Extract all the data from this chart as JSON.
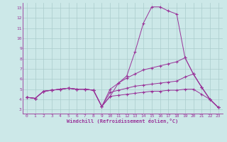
{
  "xlabel": "Windchill (Refroidissement éolien,°C)",
  "background_color": "#cce8e8",
  "grid_color": "#aacccc",
  "line_color": "#993399",
  "xlim_min": -0.5,
  "xlim_max": 23.5,
  "ylim_min": 2.6,
  "ylim_max": 13.5,
  "xticks": [
    0,
    1,
    2,
    3,
    4,
    5,
    6,
    7,
    8,
    9,
    10,
    11,
    12,
    13,
    14,
    15,
    16,
    17,
    18,
    19,
    20,
    21,
    22,
    23
  ],
  "yticks": [
    3,
    4,
    5,
    6,
    7,
    8,
    9,
    10,
    11,
    12,
    13
  ],
  "line1_x": [
    0,
    1,
    2,
    3,
    4,
    5,
    6,
    7,
    8,
    9,
    10,
    11,
    12,
    13,
    14,
    15,
    16,
    17,
    18,
    19,
    20,
    21,
    22,
    23
  ],
  "line1_y": [
    4.2,
    4.1,
    4.8,
    4.9,
    5.0,
    5.1,
    5.0,
    5.0,
    4.9,
    3.3,
    4.3,
    5.6,
    6.3,
    8.7,
    11.5,
    13.1,
    13.1,
    12.7,
    12.4,
    8.1,
    6.5,
    5.2,
    4.0,
    3.2
  ],
  "line2_x": [
    0,
    1,
    2,
    3,
    4,
    5,
    6,
    7,
    8,
    9,
    10,
    11,
    12,
    13,
    14,
    15,
    16,
    17,
    18,
    19,
    20,
    21,
    22,
    23
  ],
  "line2_y": [
    4.2,
    4.1,
    4.8,
    4.9,
    5.0,
    5.1,
    5.0,
    5.0,
    4.9,
    3.3,
    5.0,
    5.6,
    6.1,
    6.5,
    6.9,
    7.1,
    7.3,
    7.5,
    7.7,
    8.1,
    6.5,
    5.2,
    4.0,
    3.2
  ],
  "line3_x": [
    0,
    1,
    2,
    3,
    4,
    5,
    6,
    7,
    8,
    9,
    10,
    11,
    12,
    13,
    14,
    15,
    16,
    17,
    18,
    19,
    20,
    21,
    22,
    23
  ],
  "line3_y": [
    4.2,
    4.1,
    4.8,
    4.9,
    5.0,
    5.1,
    5.0,
    5.0,
    4.9,
    3.3,
    4.7,
    4.9,
    5.1,
    5.3,
    5.4,
    5.5,
    5.6,
    5.7,
    5.8,
    6.2,
    6.5,
    5.2,
    4.0,
    3.2
  ],
  "line4_x": [
    0,
    1,
    2,
    3,
    4,
    5,
    6,
    7,
    8,
    9,
    10,
    11,
    12,
    13,
    14,
    15,
    16,
    17,
    18,
    19,
    20,
    21,
    22,
    23
  ],
  "line4_y": [
    4.2,
    4.1,
    4.8,
    4.9,
    5.0,
    5.1,
    5.0,
    5.0,
    4.9,
    3.3,
    4.3,
    4.4,
    4.5,
    4.6,
    4.7,
    4.8,
    4.8,
    4.9,
    4.9,
    5.0,
    5.0,
    4.5,
    4.0,
    3.2
  ]
}
